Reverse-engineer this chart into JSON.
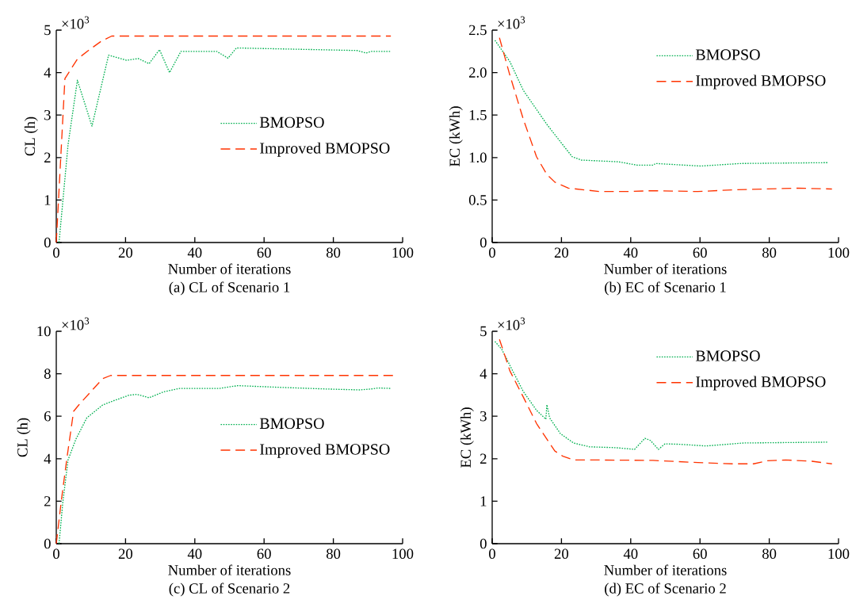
{
  "chart_data": [
    {
      "type": "line",
      "title": "(a) CL of Scenario 1",
      "xlabel": "Number of iterations",
      "ylabel": "CL (h)",
      "annotations": [
        "×10$^{3}$"
      ],
      "xlim": [
        0,
        100
      ],
      "xticks": [
        0,
        20,
        40,
        60,
        80,
        100
      ],
      "ylim": [
        0,
        5
      ],
      "yticks": [
        0,
        1,
        2,
        3,
        4,
        5
      ],
      "grid": false,
      "legend": "right",
      "marker": "none",
      "series": [
        {
          "name": "BMOPSO",
          "color": "#00b050",
          "line_style": "dotted",
          "x": [
            0.8,
            3.4,
            6.1,
            10.3,
            15.1,
            20.3,
            23.7,
            26.8,
            29.8,
            32.7,
            36,
            46.3,
            49.6,
            52,
            86.8,
            89.5,
            91,
            96.6
          ],
          "values": [
            0,
            2.3,
            3.82,
            2.74,
            4.41,
            4.29,
            4.33,
            4.21,
            4.54,
            4.0,
            4.5,
            4.5,
            4.34,
            4.58,
            4.52,
            4.46,
            4.5,
            4.5
          ]
        },
        {
          "name": "Improved BMOPSO",
          "color": "#ff3300",
          "line_style": "dashed",
          "x": [
            0,
            2.5,
            6.1,
            9.6,
            13,
            16,
            96.6
          ],
          "values": [
            0,
            3.86,
            4.32,
            4.54,
            4.74,
            4.86,
            4.86
          ]
        }
      ]
    },
    {
      "type": "line",
      "title": "(b) EC of Scenario 1",
      "xlabel": "Number of iterations",
      "ylabel": "EC (kWh)",
      "annotations": [
        "×10$^{3}$"
      ],
      "xlim": [
        0,
        100
      ],
      "xticks": [
        0,
        20,
        40,
        60,
        80,
        100
      ],
      "ylim": [
        0,
        2.5
      ],
      "yticks": [
        {
          "value": 0,
          "label": "0"
        },
        {
          "value": 0.5,
          "label": "0.5"
        },
        {
          "value": 1,
          "label": "1.0"
        },
        {
          "value": 1.5,
          "label": "1.5"
        },
        {
          "value": 2,
          "label": "2.0"
        },
        {
          "value": 2.5,
          "label": "2.5"
        }
      ],
      "grid": false,
      "legend": "top right",
      "marker": "none",
      "series": [
        {
          "name": "BMOPSO",
          "color": "#00b050",
          "line_style": "dotted",
          "x": [
            0.8,
            5.1,
            9,
            15.8,
            20,
            23.1,
            25.8,
            36.5,
            41.9,
            46.4,
            47.2,
            60.2,
            71.7,
            96.9
          ],
          "values": [
            2.38,
            2.13,
            1.79,
            1.39,
            1.17,
            1.01,
            0.97,
            0.95,
            0.91,
            0.91,
            0.93,
            0.9,
            0.93,
            0.94
          ]
        },
        {
          "name": "Improved BMOPSO",
          "color": "#ff3300",
          "line_style": "dashed",
          "x": [
            2.1,
            5.1,
            9,
            12.8,
            15.8,
            18.1,
            22,
            31.1,
            38.8,
            46.4,
            59.4,
            69.4,
            88.5,
            98.1
          ],
          "values": [
            2.41,
            1.97,
            1.45,
            1.01,
            0.8,
            0.71,
            0.64,
            0.6,
            0.6,
            0.61,
            0.6,
            0.62,
            0.64,
            0.63
          ]
        }
      ]
    },
    {
      "type": "line",
      "title": "(c) CL of Scenario 2",
      "xlabel": "Number of iterations",
      "ylabel": "CL (h)",
      "annotations": [
        "×10$^{3}$"
      ],
      "xlim": [
        0,
        100
      ],
      "xticks": [
        0,
        20,
        40,
        60,
        80,
        100
      ],
      "ylim": [
        0,
        10
      ],
      "yticks": [
        0,
        2,
        4,
        6,
        8,
        10
      ],
      "grid": false,
      "legend": "right",
      "marker": "none",
      "series": [
        {
          "name": "BMOPSO",
          "color": "#00b050",
          "line_style": "dotted",
          "x": [
            0.8,
            1.9,
            3.4,
            5.7,
            8.8,
            13.4,
            16.4,
            21,
            23.3,
            26.8,
            31,
            35.6,
            47.1,
            52.4,
            66.2,
            78.4,
            87.6,
            90.7,
            93,
            96.6
          ],
          "values": [
            0,
            1.96,
            3.94,
            4.93,
            5.92,
            6.53,
            6.72,
            6.99,
            7.03,
            6.87,
            7.15,
            7.31,
            7.31,
            7.44,
            7.35,
            7.28,
            7.24,
            7.28,
            7.33,
            7.31
          ]
        },
        {
          "name": "Improved BMOPSO",
          "color": "#ff3300",
          "line_style": "dashed",
          "x": [
            0,
            1.5,
            3.1,
            5,
            6.5,
            9.6,
            13.4,
            15.7,
            97.2
          ],
          "values": [
            0,
            2.08,
            4.06,
            6.23,
            6.53,
            7.09,
            7.77,
            7.92,
            7.92
          ]
        }
      ]
    },
    {
      "type": "line",
      "title": "(d) EC of Scenario 2",
      "xlabel": "Number of iterations",
      "ylabel": "EC (kWh)",
      "annotations": [
        "×10$^{3}$"
      ],
      "xlim": [
        0,
        100
      ],
      "xticks": [
        0,
        20,
        40,
        60,
        80,
        100
      ],
      "ylim": [
        0,
        5
      ],
      "yticks": [
        0,
        1,
        2,
        3,
        4,
        5
      ],
      "grid": false,
      "legend": "top right",
      "marker": "none",
      "series": [
        {
          "name": "BMOPSO",
          "color": "#00b050",
          "line_style": "dotted",
          "x": [
            0.8,
            2.8,
            5.9,
            9,
            12.8,
            15.5,
            15.8,
            16.6,
            19.7,
            23.5,
            28.1,
            35.7,
            41.1,
            44.1,
            45.7,
            48,
            49.9,
            54.1,
            61.7,
            72.5,
            96.9
          ],
          "values": [
            4.76,
            4.57,
            4.07,
            3.58,
            3.14,
            2.93,
            3.27,
            2.96,
            2.59,
            2.37,
            2.28,
            2.26,
            2.22,
            2.48,
            2.43,
            2.22,
            2.35,
            2.34,
            2.3,
            2.37,
            2.39
          ]
        },
        {
          "name": "Improved BMOPSO",
          "color": "#ff3300",
          "line_style": "dashed",
          "x": [
            2.1,
            5.1,
            9,
            12.8,
            15.8,
            18.1,
            20.4,
            23.5,
            31.1,
            46.4,
            59.4,
            69.4,
            75.5,
            79.3,
            84.7,
            92.3,
            98.1
          ],
          "values": [
            4.81,
            4.07,
            3.45,
            2.83,
            2.46,
            2.18,
            2.06,
            1.97,
            1.97,
            1.96,
            1.91,
            1.88,
            1.88,
            1.95,
            1.97,
            1.94,
            1.88
          ]
        }
      ]
    }
  ]
}
